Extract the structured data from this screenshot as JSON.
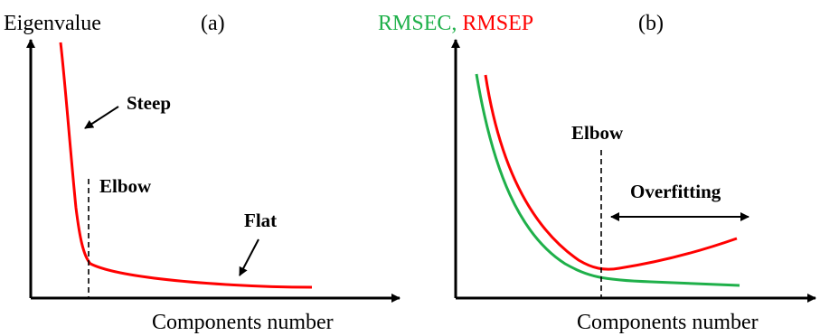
{
  "panel_a": {
    "label": "(a)",
    "y_axis_label": "Eigenvalue",
    "x_axis_label": "Components number",
    "annotations": {
      "steep": "Steep",
      "elbow": "Elbow",
      "flat": "Flat"
    },
    "curve_color": "#ff0000"
  },
  "panel_b": {
    "label": "(b)",
    "y_axis_label_part1": "RMSEC",
    "y_axis_label_sep": ", ",
    "y_axis_label_part2": "RMSEP",
    "x_axis_label": "Components number",
    "annotations": {
      "elbow": "Elbow",
      "overfitting": "Overfitting"
    },
    "rmsec_color": "#1fb04a",
    "rmsep_color": "#ff0000"
  }
}
